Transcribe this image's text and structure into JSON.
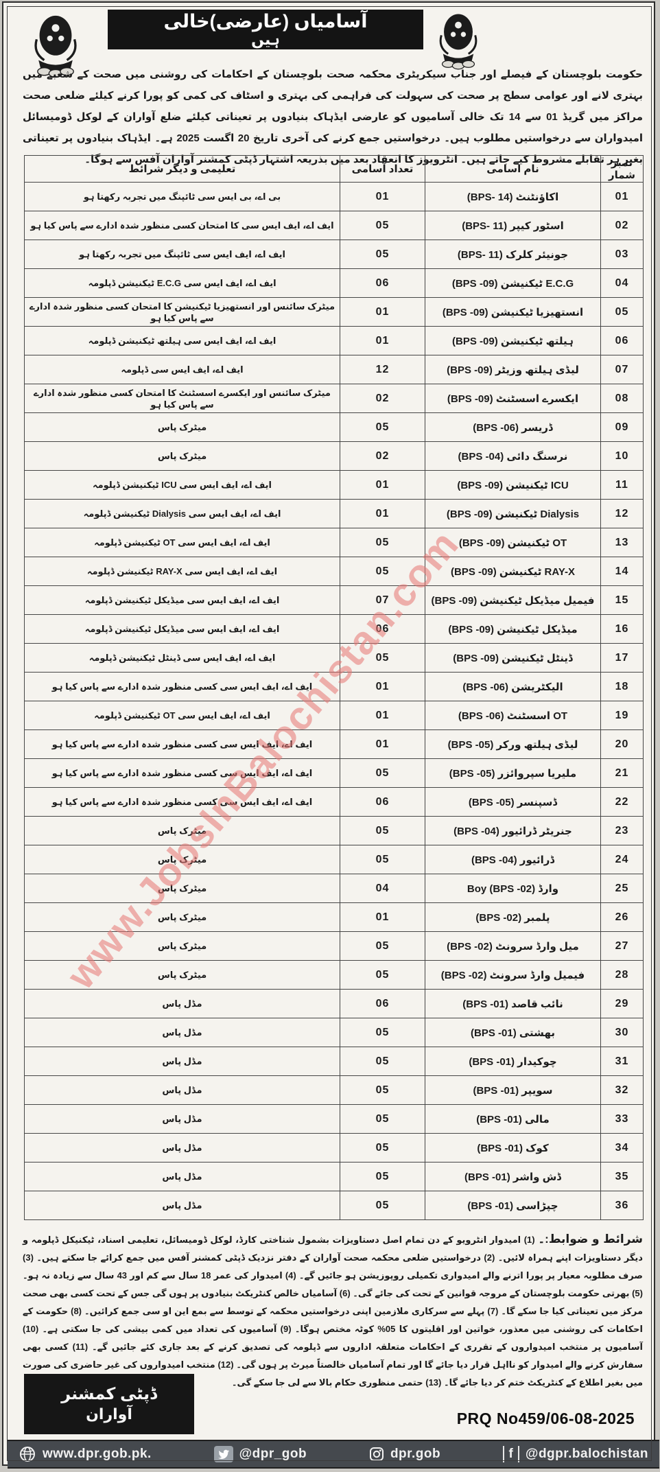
{
  "header": {
    "title_line1": "آسامیاں (عارضی)خالی",
    "title_line2": "ہیں",
    "left_logo": "government-of-balochistan-crest",
    "right_logo": "government-of-balochistan-crest"
  },
  "intro": {
    "text": "حکومت بلوچستان کے فیصلے اور جناب سیکریٹری محکمہ صحت بلوچستان کے احکامات کی روشنی میں صحت کے شعبے میں بہتری لانے اور عوامی سطح پر صحت کی سہولت کی فراہمی کی بہتری و اسٹاف کی کمی کو پورا کرنے کیلئے ضلعی صحت مراکز میں گریڈ 01 سے 14 تک خالی آسامیوں کو عارضی ایڈہاک بنیادوں پر تعیناتی کیلئے ضلع آواران کے لوکل ڈومیسائل امیدواران سے درخواستیں مطلوب ہیں۔ درخواستیں جمع کرنے کی آخری تاریخ 20 اگست 2025 ہے۔ ایڈہاک بنیادوں پر تعیناتی بغیر ہر تقابلے مشروط کیے جاتے ہیں۔ انٹرویوز کا انعقاد بعد میں بذریعہ اشتہار ڈپٹی کمشنر آواران آفس سے ہوگا۔"
  },
  "table": {
    "headers": {
      "serial": "نمبر شمار",
      "name": "نام اسامی",
      "count": "تعداد آسامی",
      "qualification": "تعلیمی و دیگر شرائط"
    },
    "rows": [
      {
        "no": "01",
        "name": "اکاؤنٹنٹ (BPS- 14)",
        "count": "01",
        "qual": "بی اے، بی ایس سی ٹائپنگ میں تجربہ رکھتا ہو"
      },
      {
        "no": "02",
        "name": "اسٹور کیپر (BPS- 11)",
        "count": "05",
        "qual": "ایف اے، ایف ایس سی کا امتحان کسی منظور شدہ ادارے سے پاس کیا ہو"
      },
      {
        "no": "03",
        "name": "جونیئر کلرک (BPS- 11)",
        "count": "05",
        "qual": "ایف اے، ایف ایس سی ٹائپنگ میں تجربہ رکھتا ہو"
      },
      {
        "no": "04",
        "name": "E.C.G ٹیکنیشن (BPS -09)",
        "count": "06",
        "qual": "ایف اے، ایف ایس سی E.C.G ٹیکنیشن ڈپلومہ"
      },
      {
        "no": "05",
        "name": "انستھیزیا ٹیکنیشن (BPS -09)",
        "count": "01",
        "qual": "میٹرک سائنس اور انستھیزیا ٹیکنیشن کا امتحان کسی منظور شدہ ادارے سے پاس کیا ہو"
      },
      {
        "no": "06",
        "name": "ہیلتھ ٹیکنیشن (BPS -09)",
        "count": "01",
        "qual": "ایف اے، ایف ایس سی ہیلتھ ٹیکنیشن ڈپلومہ"
      },
      {
        "no": "07",
        "name": "لیڈی ہیلتھ وزیٹر (BPS -09)",
        "count": "12",
        "qual": "ایف اے، ایف ایس سی ڈپلومہ"
      },
      {
        "no": "08",
        "name": "ایکسرے اسسٹنٹ (BPS -09)",
        "count": "02",
        "qual": "میٹرک سائنس اور ایکسرے اسسٹنٹ کا امتحان کسی منظور شدہ ادارے سے پاس کیا ہو"
      },
      {
        "no": "09",
        "name": "ڈریسر (BPS -06)",
        "count": "05",
        "qual": "میٹرک پاس"
      },
      {
        "no": "10",
        "name": "نرسنگ دائی (BPS -04)",
        "count": "02",
        "qual": "میٹرک پاس"
      },
      {
        "no": "11",
        "name": "ICU ٹیکنیشن (BPS -09)",
        "count": "01",
        "qual": "ایف اے، ایف ایس سی ICU ٹیکنیشن ڈپلومہ"
      },
      {
        "no": "12",
        "name": "Dialysis ٹیکنیشن (BPS -09)",
        "count": "01",
        "qual": "ایف اے، ایف ایس سی Dialysis ٹیکنیشن ڈپلومہ"
      },
      {
        "no": "13",
        "name": "OT ٹیکنیشن (BPS -09)",
        "count": "05",
        "qual": "ایف اے، ایف ایس سی OT ٹیکنیشن ڈپلومہ"
      },
      {
        "no": "14",
        "name": "RAY-X ٹیکنیشن (BPS -09)",
        "count": "05",
        "qual": "ایف اے، ایف ایس سی RAY-X ٹیکنیشن ڈپلومہ"
      },
      {
        "no": "15",
        "name": "فیمیل میڈیکل ٹیکنیشن (BPS -09)",
        "count": "07",
        "qual": "ایف اے، ایف ایس سی میڈیکل ٹیکنیشن ڈپلومہ"
      },
      {
        "no": "16",
        "name": "میڈیکل ٹیکنیشن (BPS -09)",
        "count": "06",
        "qual": "ایف اے، ایف ایس سی میڈیکل ٹیکنیشن ڈپلومہ"
      },
      {
        "no": "17",
        "name": "ڈینٹل ٹیکنیشن (BPS -09)",
        "count": "05",
        "qual": "ایف اے، ایف ایس سی ڈینٹل ٹیکنیشن ڈپلومہ"
      },
      {
        "no": "18",
        "name": "الیکٹریشن (BPS -06)",
        "count": "01",
        "qual": "ایف اے، ایف ایس سی کسی منظور شدہ ادارے سے پاس کیا ہو"
      },
      {
        "no": "19",
        "name": "OT اسسٹنٹ (BPS -06)",
        "count": "01",
        "qual": "ایف اے، ایف ایس سی OT ٹیکنیشن ڈپلومہ"
      },
      {
        "no": "20",
        "name": "لیڈی ہیلتھ ورکر (BPS -05)",
        "count": "01",
        "qual": "ایف اے، ایف ایس سی کسی منظور شدہ ادارے سے پاس کیا ہو"
      },
      {
        "no": "21",
        "name": "ملیریا سپروائزر (BPS -05)",
        "count": "05",
        "qual": "ایف اے، ایف ایس سی کسی منظور شدہ ادارے سے پاس کیا ہو"
      },
      {
        "no": "22",
        "name": "ڈسپنسر (BPS -05)",
        "count": "06",
        "qual": "ایف اے، ایف ایس سی کسی منظور شدہ ادارے سے پاس کیا ہو"
      },
      {
        "no": "23",
        "name": "جنریٹر ڈرائیور (BPS -04)",
        "count": "05",
        "qual": "میٹرک پاس"
      },
      {
        "no": "24",
        "name": "ڈرائیور (BPS -04)",
        "count": "05",
        "qual": "میٹرک پاس"
      },
      {
        "no": "25",
        "name": "وارڈ Boy (BPS -02)",
        "count": "04",
        "qual": "میٹرک پاس"
      },
      {
        "no": "26",
        "name": "پلمبر (BPS -02)",
        "count": "01",
        "qual": "میٹرک پاس"
      },
      {
        "no": "27",
        "name": "میل وارڈ سرونٹ (BPS -02)",
        "count": "05",
        "qual": "میٹرک پاس"
      },
      {
        "no": "28",
        "name": "فیمیل وارڈ سرونٹ (BPS -02)",
        "count": "05",
        "qual": "میٹرک پاس"
      },
      {
        "no": "29",
        "name": "نائب قاصد (BPS -01)",
        "count": "06",
        "qual": "مڈل پاس"
      },
      {
        "no": "30",
        "name": "بھشتی (BPS -01)",
        "count": "05",
        "qual": "مڈل پاس"
      },
      {
        "no": "31",
        "name": "چوکیدار (BPS -01)",
        "count": "05",
        "qual": "مڈل پاس"
      },
      {
        "no": "32",
        "name": "سویپر (BPS -01)",
        "count": "05",
        "qual": "مڈل پاس"
      },
      {
        "no": "33",
        "name": "مالی (BPS -01)",
        "count": "05",
        "qual": "مڈل پاس"
      },
      {
        "no": "34",
        "name": "کوک (BPS -01)",
        "count": "05",
        "qual": "مڈل پاس"
      },
      {
        "no": "35",
        "name": "ڈش واشر (BPS -01)",
        "count": "05",
        "qual": "مڈل پاس"
      },
      {
        "no": "36",
        "name": "چپڑاسی (BPS -01)",
        "count": "05",
        "qual": "مڈل پاس"
      }
    ]
  },
  "terms": {
    "heading": "شرائط و ضوابط:۔",
    "body": "(1) امیدوار انٹرویو کے دن تمام اصل دستاویزات بشمول شناختی کارڈ، لوکل ڈومیسائل، تعلیمی اسناد، ٹیکنیکل ڈپلومہ و دیگر دستاویزات اپنے ہمراہ لائیں۔ (2) درخواستیں ضلعی محکمہ صحت آواران کے دفتر نزدیک ڈپٹی کمشنر آفس میں جمع کرائے جا سکتے ہیں۔ (3) صرف مطلوبہ معیار پر پورا اترنے والے امیدواری تکمیلی روپوزیشن ہو جائیں گے۔ (4) امیدوار کی عمر 18 سال سے کم اور 43 سال سے زیادہ نہ ہو۔ (5) بھرتی حکومت بلوچستان کے مروجہ قوانین کے تحت کی جائے گی۔ (6) آسامیاں خالص کنٹریکٹ بنیادوں پر ہوں گی جس کے تحت کسی بھی صحت مرکز میں تعیناتی کیا جا سکے گا۔ (7) پہلے سے سرکاری ملازمین اپنی درخواستیں محکمہ کے توسط سے بمع این او سی جمع کرائیں۔ (8) حکومت کے احکامات کی روشنی میں معذور، خواتین اور اقلیتوں کا 05% کوٹہ مختص ہوگا۔ (9) آسامیوں کی تعداد میں کمی بیشی کی جا سکتی ہے۔ (10) آسامیوں پر منتخب امیدواروں کے تقرری کے احکامات متعلقہ اداروں سے ڈپلومہ کی تصدیق کرنے کے بعد جاری کئے جائیں گے۔ (11) کسی بھی سفارش کرنے والے امیدوار کو نااہل قرار دیا جائے گا اور تمام آسامیاں خالصتاً میرٹ پر ہوں گی۔ (12) منتخب امیدواروں کی غیر حاضری کی صورت میں بغیر اطلاع کے کنٹریکٹ ختم کر دیا جائے گا۔ (13) حتمی منظوری حکام بالا سے لی جا سکے گی۔"
  },
  "signature": {
    "line1": "ڈپٹی کمشنر",
    "line2": "آواران"
  },
  "prq_number": "PRQ No459/06-08-2025",
  "watermark": "www.JobsInBalochistan.com",
  "footer": {
    "website": "www.dpr.gob.pk.",
    "twitter_handle": "@dpr_gob",
    "instagram_handle": "dpr.gob",
    "facebook_handle": "@dgpr.balochistan"
  },
  "colors": {
    "paper": "#f5f3ee",
    "ink": "#1b1b1b",
    "title_box": "#141414",
    "footer_bar": "#45494e",
    "watermark_pink": "#e57573"
  }
}
